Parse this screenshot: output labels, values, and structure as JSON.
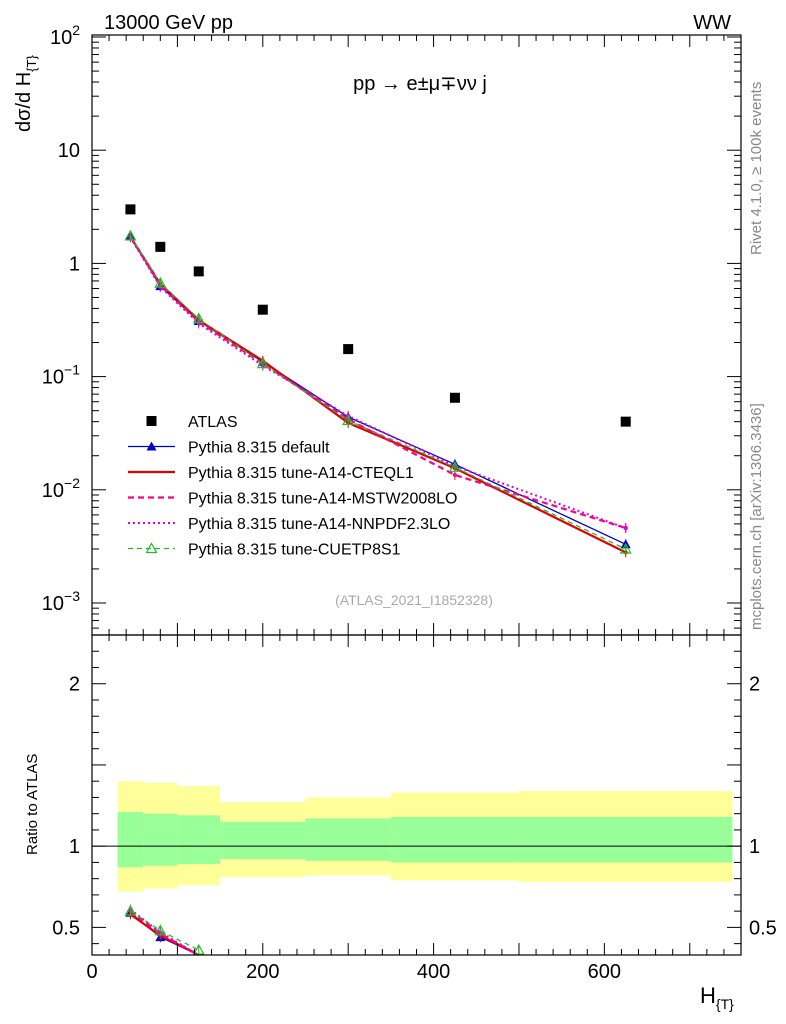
{
  "header": {
    "left": "13000 GeV pp",
    "right": "WW"
  },
  "side_labels": {
    "rivet": "Rivet 4.1.0, ≥ 100k events",
    "mcplots": "mcplots.cern.ch [arXiv:1306.3436]"
  },
  "colors": {
    "data": "#000000",
    "default": "#0000cc",
    "cteq": "#e00000",
    "mstw": "#ff0080",
    "nnpdf": "#dd00dd",
    "cuetp": "#22bb22",
    "band_outer": "#ffff99",
    "band_inner": "#99ff99"
  },
  "chart_data": [
    {
      "type": "line",
      "title": "pp → e±μ∓νν j",
      "ylabel": "dσ/d H{T}",
      "ylabel_main": "dσ/d H",
      "ylabel_sub": "{T}",
      "ylog": true,
      "ylim": [
        0.0004,
        100
      ],
      "xlim": [
        0,
        760
      ],
      "yticks": [
        {
          "value": 100,
          "mant": "10",
          "exp": "2"
        },
        {
          "value": 10,
          "mant": "10",
          "exp": ""
        },
        {
          "value": 1,
          "mant": "1",
          "exp": ""
        },
        {
          "value": 0.1,
          "mant": "10",
          "exp": "−1"
        },
        {
          "value": 0.01,
          "mant": "10",
          "exp": "−2"
        },
        {
          "value": 0.001,
          "mant": "10",
          "exp": "−3"
        }
      ],
      "watermark": "(ATLAS_2021_I1852328)",
      "bins": [
        [
          30,
          60
        ],
        [
          60,
          100
        ],
        [
          100,
          150
        ],
        [
          150,
          250
        ],
        [
          250,
          350
        ],
        [
          350,
          500
        ],
        [
          500,
          750
        ]
      ],
      "x": [
        45,
        80,
        125,
        200,
        300,
        425,
        625
      ],
      "series": [
        {
          "name": "ATLAS",
          "key": "data",
          "values": [
            3.0,
            1.4,
            0.85,
            0.39,
            0.175,
            0.065,
            0.04
          ]
        },
        {
          "name": "Pythia 8.315 default",
          "key": "default",
          "values": [
            1.75,
            0.63,
            0.31,
            0.135,
            0.044,
            0.0168,
            0.0033
          ]
        },
        {
          "name": "Pythia 8.315 tune-A14-CTEQL1",
          "key": "cteq",
          "values": [
            1.72,
            0.66,
            0.315,
            0.138,
            0.039,
            0.0155,
            0.0028
          ]
        },
        {
          "name": "Pythia 8.315 tune-A14-MSTW2008LO",
          "key": "mstw",
          "values": [
            1.72,
            0.64,
            0.305,
            0.13,
            0.042,
            0.0135,
            0.0046
          ]
        },
        {
          "name": "Pythia 8.315 tune-A14-NNPDF2.3LO",
          "key": "nnpdf",
          "values": [
            1.7,
            0.62,
            0.295,
            0.125,
            0.045,
            0.0162,
            0.0046
          ]
        },
        {
          "name": "Pythia 8.315 tune-CUETP8S1",
          "key": "cuetp",
          "values": [
            1.75,
            0.67,
            0.325,
            0.13,
            0.041,
            0.0158,
            0.003
          ]
        }
      ]
    },
    {
      "type": "line",
      "ylabel": "Ratio to ATLAS",
      "xlabel": "H{T}",
      "xlabel_main": "H",
      "xlabel_sub": "{T}",
      "ylim": [
        0.33,
        2.3
      ],
      "xlim": [
        0,
        760
      ],
      "yticks": [
        {
          "value": 0.5,
          "label": "0.5"
        },
        {
          "value": 1,
          "label": "1"
        },
        {
          "value": 2,
          "label": "2"
        }
      ],
      "xticks": [
        {
          "value": 0,
          "label": "0"
        },
        {
          "value": 200,
          "label": "200"
        },
        {
          "value": 400,
          "label": "400"
        },
        {
          "value": 600,
          "label": "600"
        }
      ],
      "band_outer": [
        [
          1.4,
          0.72
        ],
        [
          1.39,
          0.74
        ],
        [
          1.37,
          0.76
        ],
        [
          1.27,
          0.81
        ],
        [
          1.3,
          0.82
        ],
        [
          1.33,
          0.79
        ],
        [
          1.34,
          0.78
        ]
      ],
      "band_inner": [
        [
          1.21,
          0.87
        ],
        [
          1.2,
          0.88
        ],
        [
          1.19,
          0.89
        ],
        [
          1.15,
          0.92
        ],
        [
          1.17,
          0.91
        ],
        [
          1.18,
          0.9
        ],
        [
          1.18,
          0.9
        ]
      ],
      "series": [
        {
          "name": "Pythia 8.315 default",
          "key": "default",
          "values": [
            0.59,
            0.44,
            0.33
          ]
        },
        {
          "name": "Pythia 8.315 tune-A14-CTEQL1",
          "key": "cteq",
          "values": [
            0.58,
            0.45,
            0.33
          ]
        },
        {
          "name": "Pythia 8.315 tune-A14-MSTW2008LO",
          "key": "mstw",
          "values": [
            0.6,
            0.46,
            0.33
          ]
        },
        {
          "name": "Pythia 8.315 tune-A14-NNPDF2.3LO",
          "key": "nnpdf",
          "values": [
            0.61,
            0.47,
            0.33
          ]
        },
        {
          "name": "Pythia 8.315 tune-CUETP8S1",
          "key": "cuetp",
          "values": [
            0.6,
            0.48,
            0.36
          ]
        }
      ]
    }
  ]
}
